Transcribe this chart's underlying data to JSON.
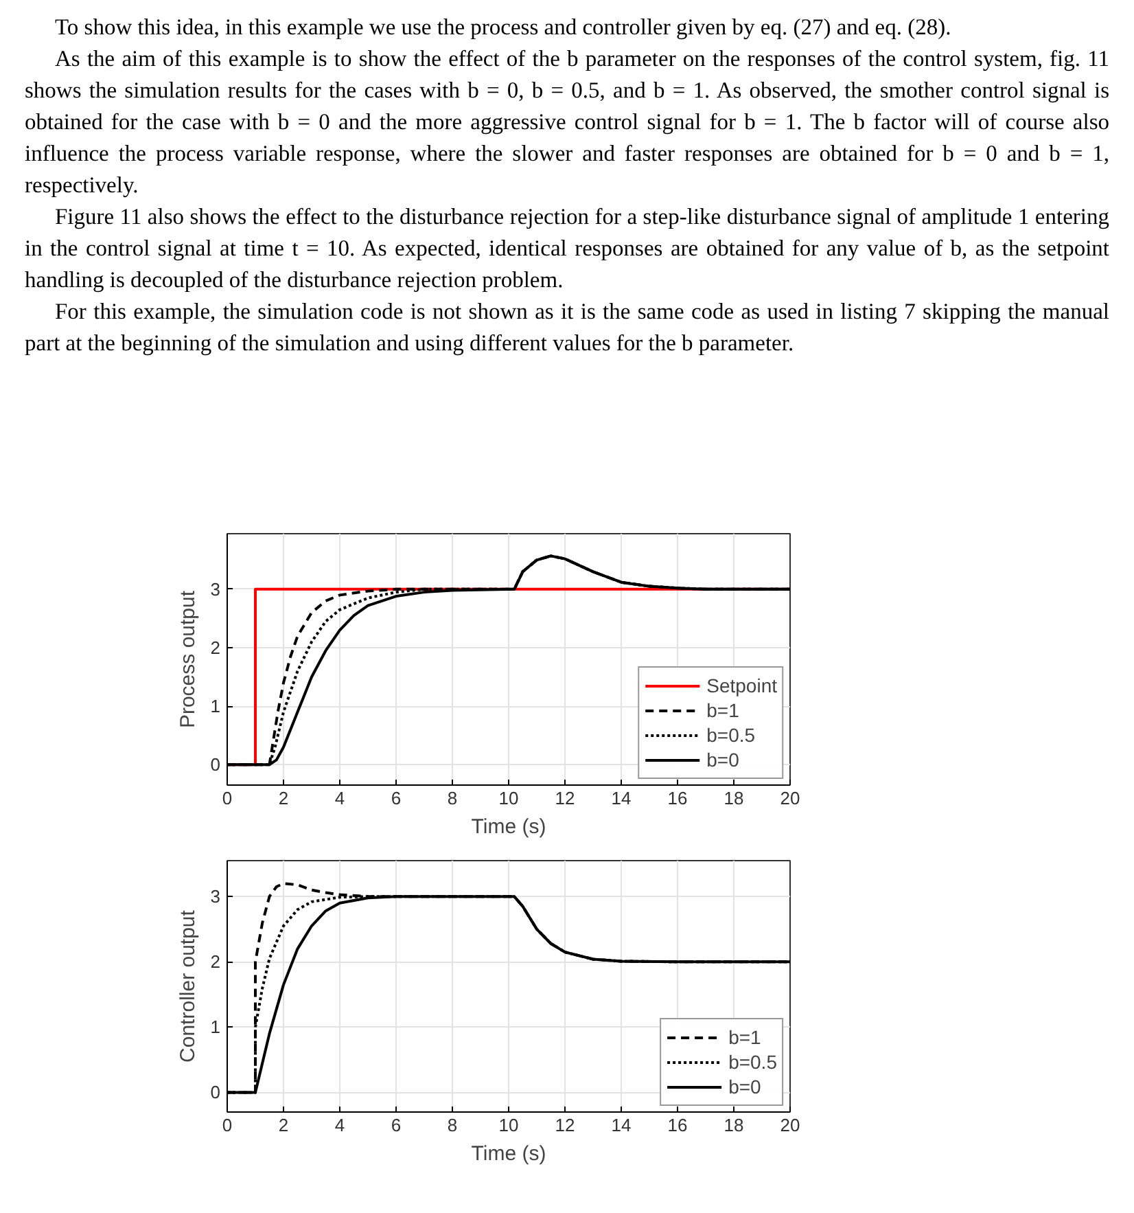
{
  "chart_data": [
    {
      "type": "line",
      "xlabel": "Time (s)",
      "ylabel": "Process output",
      "annotations": [
        "To show this idea, in this example we use the process and controller given by eq. (27) and eq. (28).",
        "As the aim of this example is to show the effect of the b parameter on the responses of the control system, fig. 11 shows the simulation results for the cases with b = 0, b = 0.5, and b = 1. As observed, the smother control signal is obtained for the case with b = 0 and the more aggressive control signal for b = 1. The b factor will of course also influence the process variable response, where the slower and faster responses are obtained for b = 0 and b = 1, respectively.",
        "Figure 11 also shows the effect to the disturbance rejection for a step-like disturbance signal of amplitude 1 entering in the control signal at time t = 10. As expected, identical responses are obtained for any value of b, as the setpoint handling is decoupled of the disturbance rejection problem.",
        "For this example, the simulation code is not shown as it is the same code as used in listing 7 skipping the manual part at the beginning of the simulation and using different values for the b parameter."
      ],
      "xlim": [
        0,
        20
      ],
      "xticks": [
        0,
        2,
        4,
        6,
        8,
        10,
        12,
        14,
        16,
        18,
        20
      ],
      "ylim": [
        -0.35,
        3.95
      ],
      "yticks": [
        0,
        1,
        2,
        3
      ],
      "grid": true,
      "legend": "bottom right",
      "series": [
        {
          "name": "Setpoint",
          "color": "#ff0000",
          "line_style": "solid",
          "x": [
            0,
            1,
            1,
            20
          ],
          "values": [
            0,
            0,
            3,
            3
          ]
        },
        {
          "name": "b=1",
          "color": "#000000",
          "line_style": "dashed",
          "x": [
            0,
            1.5,
            1.6,
            1.8,
            2,
            2.25,
            2.5,
            3,
            3.5,
            4,
            5,
            6,
            8,
            10.2,
            10.5,
            11,
            11.5,
            12,
            13,
            14,
            15,
            16,
            17,
            20
          ],
          "values": [
            0,
            0,
            0.3,
            0.9,
            1.4,
            1.85,
            2.2,
            2.6,
            2.8,
            2.9,
            2.97,
            3.0,
            3.0,
            3.0,
            3.3,
            3.5,
            3.57,
            3.52,
            3.3,
            3.12,
            3.05,
            3.02,
            3.0,
            3.0
          ]
        },
        {
          "name": "b=0.5",
          "color": "#000000",
          "line_style": "dotted",
          "x": [
            0,
            1.5,
            1.7,
            2,
            2.5,
            3,
            3.5,
            4,
            5,
            6,
            7,
            8,
            10.2,
            10.5,
            11,
            11.5,
            12,
            13,
            14,
            15,
            16,
            17,
            20
          ],
          "values": [
            0,
            0,
            0.3,
            0.9,
            1.6,
            2.1,
            2.45,
            2.65,
            2.85,
            2.95,
            3.0,
            3.0,
            3.0,
            3.3,
            3.5,
            3.57,
            3.52,
            3.3,
            3.12,
            3.05,
            3.02,
            3.0,
            3.0
          ]
        },
        {
          "name": "b=0",
          "color": "#000000",
          "line_style": "solid",
          "x": [
            0,
            1.5,
            1.75,
            2,
            2.5,
            3,
            3.5,
            4,
            4.5,
            5,
            6,
            7,
            8,
            10.2,
            10.5,
            11,
            11.5,
            12,
            13,
            14,
            15,
            16,
            17,
            20
          ],
          "values": [
            0,
            0,
            0.08,
            0.3,
            0.9,
            1.5,
            1.95,
            2.3,
            2.55,
            2.72,
            2.88,
            2.95,
            2.98,
            3.0,
            3.3,
            3.5,
            3.57,
            3.52,
            3.3,
            3.12,
            3.05,
            3.02,
            3.0,
            3.0
          ]
        }
      ]
    },
    {
      "type": "line",
      "xlabel": "Time (s)",
      "ylabel": "Controller output",
      "xlim": [
        0,
        20
      ],
      "xticks": [
        0,
        2,
        4,
        6,
        8,
        10,
        12,
        14,
        16,
        18,
        20
      ],
      "ylim": [
        -0.3,
        3.55
      ],
      "yticks": [
        0,
        1,
        2,
        3
      ],
      "grid": true,
      "legend": "bottom right",
      "series": [
        {
          "name": "b=1",
          "color": "#000000",
          "line_style": "dashed",
          "x": [
            0,
            1,
            1,
            1.25,
            1.5,
            1.75,
            2,
            2.5,
            3,
            3.5,
            4,
            5,
            10.2,
            10.5,
            11,
            11.5,
            12,
            13,
            14,
            16,
            20
          ],
          "values": [
            0,
            0,
            2.0,
            2.6,
            3.0,
            3.15,
            3.2,
            3.18,
            3.1,
            3.06,
            3.03,
            3.0,
            3.0,
            2.85,
            2.5,
            2.28,
            2.15,
            2.04,
            2.01,
            2.0,
            2.0
          ]
        },
        {
          "name": "b=0.5",
          "color": "#000000",
          "line_style": "dotted",
          "x": [
            0,
            1,
            1,
            1.25,
            1.5,
            2,
            2.5,
            3,
            4,
            5,
            10.2,
            10.5,
            11,
            11.5,
            12,
            13,
            14,
            16,
            20
          ],
          "values": [
            0,
            0,
            1.0,
            1.6,
            2.05,
            2.55,
            2.8,
            2.92,
            2.99,
            3.0,
            3.0,
            2.85,
            2.5,
            2.28,
            2.15,
            2.04,
            2.01,
            2.0,
            2.0
          ]
        },
        {
          "name": "b=0",
          "color": "#000000",
          "line_style": "solid",
          "x": [
            0,
            1,
            1.5,
            2,
            2.5,
            3,
            3.5,
            4,
            5,
            6,
            10.2,
            10.5,
            11,
            11.5,
            12,
            13,
            14,
            16,
            20
          ],
          "values": [
            0,
            0,
            0.9,
            1.65,
            2.2,
            2.55,
            2.78,
            2.9,
            2.98,
            3.0,
            3.0,
            2.85,
            2.5,
            2.28,
            2.15,
            2.04,
            2.01,
            2.0,
            2.0
          ]
        }
      ]
    }
  ]
}
